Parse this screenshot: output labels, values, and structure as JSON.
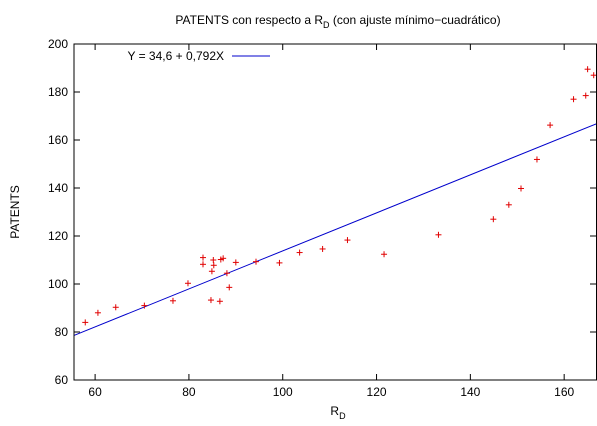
{
  "chart_data": {
    "type": "scatter",
    "title": {
      "main": "PATENTS con respecto a R",
      "sub": "D",
      "rest": " (con ajuste mínimo−cuadrático)"
    },
    "xlabel": {
      "main": "R",
      "sub": "D"
    },
    "ylabel": "PATENTS",
    "xlim": [
      55.5,
      167
    ],
    "ylim": [
      60,
      200
    ],
    "xticks": [
      60,
      80,
      100,
      120,
      140,
      160
    ],
    "yticks": [
      60,
      80,
      100,
      120,
      140,
      160,
      180,
      200
    ],
    "grid": false,
    "legend": {
      "position": "top-left",
      "entries": [
        {
          "label": "Y = 34,6 + 0,792X",
          "color": "#0000cc"
        }
      ]
    },
    "fit": {
      "intercept": 34.6,
      "slope": 0.792,
      "color": "#0000cc"
    },
    "points": {
      "color": "#e00000",
      "marker": "+",
      "x": [
        57.9,
        60.6,
        64.4,
        70.5,
        76.6,
        79.8,
        83.0,
        83.0,
        84.7,
        84.9,
        85.2,
        85.3,
        86.6,
        86.8,
        87.3,
        88.1,
        88.6,
        90.0,
        94.3,
        99.3,
        103.6,
        108.5,
        113.8,
        121.6,
        133.2,
        144.9,
        148.2,
        150.8,
        154.2,
        157.0,
        162.0,
        164.6,
        165.0,
        166.3
      ],
      "y": [
        84.0,
        88.0,
        90.3,
        91.0,
        93.0,
        100.3,
        111.0,
        108.2,
        93.3,
        105.3,
        110.0,
        107.8,
        92.8,
        110.2,
        110.7,
        104.5,
        98.6,
        109.0,
        109.3,
        108.8,
        113.1,
        114.6,
        118.3,
        112.4,
        120.5,
        127.0,
        133.0,
        139.8,
        151.9,
        166.2,
        177.0,
        178.5,
        189.5,
        187.0
      ]
    }
  }
}
